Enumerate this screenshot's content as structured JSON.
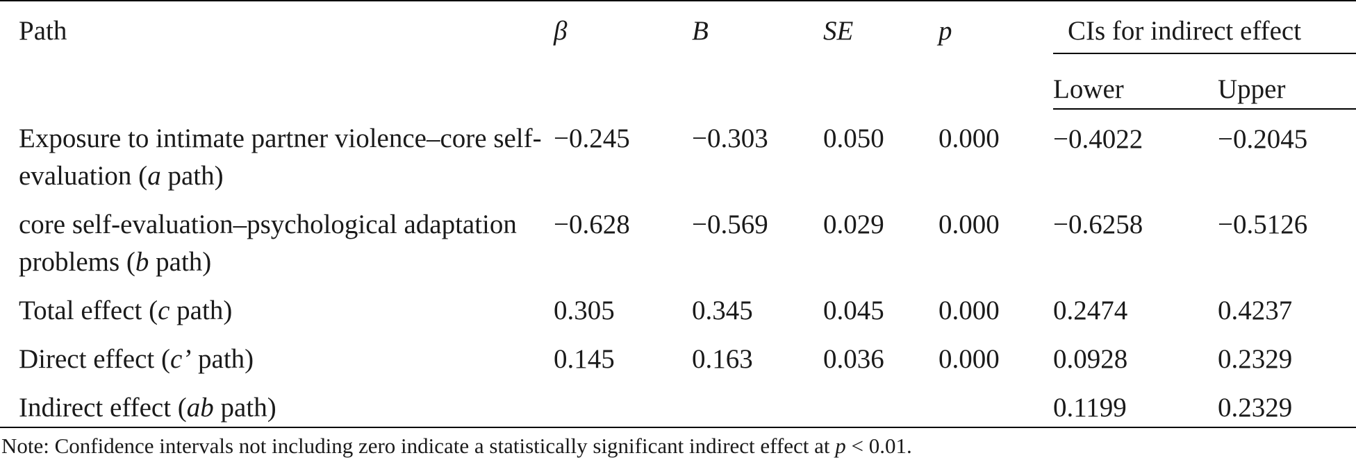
{
  "table": {
    "header": {
      "columns": [
        "Path",
        "β",
        "B",
        "SE",
        "p"
      ],
      "group": "CIs for indirect effect",
      "subcolumns": [
        "Lower",
        "Upper"
      ]
    },
    "rows": [
      {
        "path": [
          "Exposure to intimate partner violence–core self-evaluation (",
          "a",
          " path)"
        ],
        "values": [
          "−0.245",
          "−0.303",
          "0.050",
          "0.000",
          "−0.4022",
          "−0.2045"
        ]
      },
      {
        "path": [
          "core self-evaluation–psychological adaptation problems (",
          "b",
          " path)"
        ],
        "values": [
          "−0.628",
          "−0.569",
          "0.029",
          "0.000",
          "−0.6258",
          "−0.5126"
        ]
      },
      {
        "path": [
          "Total effect (",
          "c",
          " path)"
        ],
        "values": [
          "0.305",
          "0.345",
          "0.045",
          "0.000",
          "0.2474",
          "0.4237"
        ]
      },
      {
        "path": [
          "Direct effect (",
          "c’",
          " path)"
        ],
        "values": [
          "0.145",
          "0.163",
          "0.036",
          "0.000",
          "0.0928",
          "0.2329"
        ]
      },
      {
        "path": [
          "Indirect effect (",
          "ab",
          " path)"
        ],
        "values": [
          null,
          null,
          null,
          null,
          "0.1199",
          "0.2329"
        ]
      }
    ],
    "note": [
      "Note: Confidence intervals not including zero indicate a statistically significant indirect effect at ",
      "p",
      " < 0.01."
    ]
  }
}
